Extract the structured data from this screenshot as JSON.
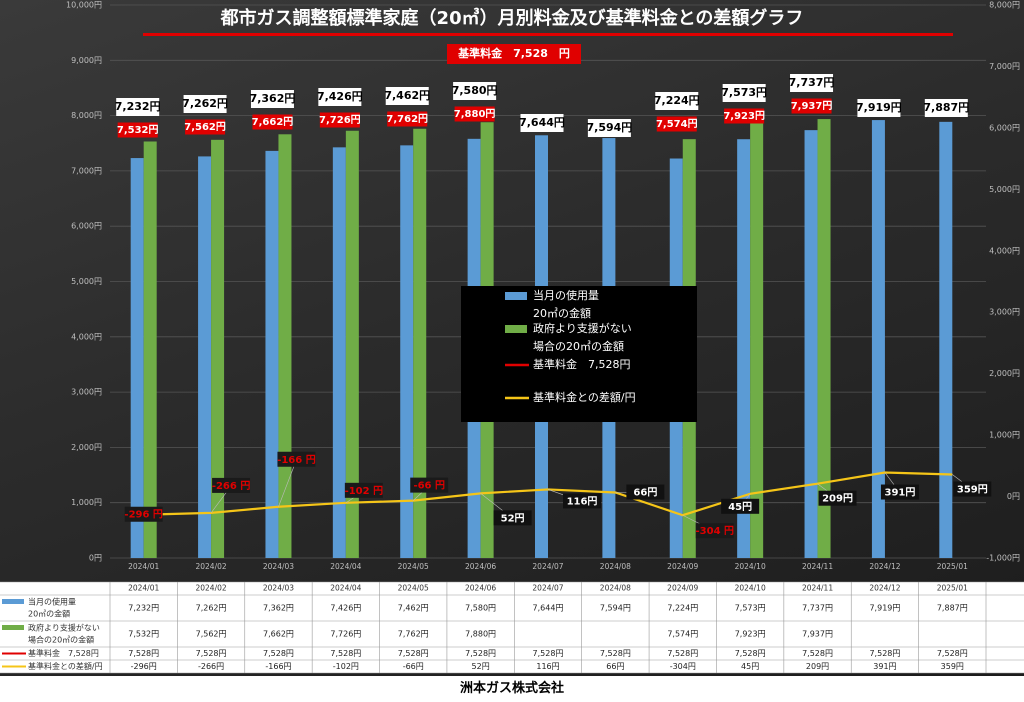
{
  "footer": {
    "company": "洲本ガス株式会社"
  },
  "colors": {
    "blue": "#5b9bd5",
    "green": "#70ad47",
    "red": "#e00000",
    "yellow": "#f5c518"
  },
  "chart_data": {
    "type": "bar",
    "title": "都市ガス調整額標準家庭（20㎥）月別料金及び基準料金との差額グラフ",
    "baseline_box": "基準料金　7,528　円",
    "categories": [
      "2024/01",
      "2024/02",
      "2024/03",
      "2024/04",
      "2024/05",
      "2024/06",
      "2024/07",
      "2024/08",
      "2024/09",
      "2024/10",
      "2024/11",
      "2024/12",
      "2025/01"
    ],
    "left_axis": {
      "ylim": [
        0,
        10000
      ],
      "ticks": [
        "0円",
        "1,000円",
        "2,000円",
        "3,000円",
        "4,000円",
        "5,000円",
        "6,000円",
        "7,000円",
        "8,000円",
        "9,000円",
        "10,000円"
      ]
    },
    "right_axis": {
      "ylim": [
        -1000,
        8000
      ],
      "ticks": [
        "-1,000円",
        "0円",
        "1,000円",
        "2,000円",
        "3,000円",
        "4,000円",
        "5,000円",
        "6,000円",
        "7,000円",
        "8,000円"
      ]
    },
    "series": [
      {
        "name": "当月の使用量20㎥の金額",
        "legend_lines": [
          "当月の使用量",
          "20㎥の金額"
        ],
        "table_lines": [
          "当月の使用量",
          "20㎥の金額"
        ],
        "chart": "bar",
        "axis": "left",
        "values": [
          7232,
          7262,
          7362,
          7426,
          7462,
          7580,
          7644,
          7594,
          7224,
          7573,
          7737,
          7919,
          7887
        ],
        "labels": [
          "7,232円",
          "7,262円",
          "7,362円",
          "7,426円",
          "7,462円",
          "7,580円",
          "7,644円",
          "7,594円",
          "7,224円",
          "7,573円",
          "7,737円",
          "7,919円",
          "7,887円"
        ]
      },
      {
        "name": "政府より支援がない場合の20㎥の金額",
        "legend_lines": [
          "政府より支援がない",
          "場合の20㎥の金額"
        ],
        "table_lines": [
          "政府より支援がない",
          "場合の20㎥の金額"
        ],
        "chart": "bar",
        "axis": "left",
        "values": [
          7532,
          7562,
          7662,
          7726,
          7762,
          7880,
          null,
          null,
          7574,
          7923,
          7937,
          null,
          null
        ],
        "labels": [
          "7,532円",
          "7,562円",
          "7,662円",
          "7,726円",
          "7,762円",
          "7,880円",
          "",
          "",
          "7,574円",
          "7,923円",
          "7,937円",
          "",
          ""
        ]
      },
      {
        "name": "基準料金　7,528円",
        "legend_lines": [
          "基準料金　7,528円"
        ],
        "table_lines": [
          "基準料金　7,528円"
        ],
        "chart": "line",
        "axis": "left",
        "values": [
          7528,
          7528,
          7528,
          7528,
          7528,
          7528,
          7528,
          7528,
          7528,
          7528,
          7528,
          7528,
          7528
        ],
        "labels": [
          "7,528円",
          "7,528円",
          "7,528円",
          "7,528円",
          "7,528円",
          "7,528円",
          "7,528円",
          "7,528円",
          "7,528円",
          "7,528円",
          "7,528円",
          "7,528円",
          "7,528円"
        ]
      },
      {
        "name": "基準料金との差額/円",
        "legend_lines": [
          "基準料金との差額/円"
        ],
        "table_lines": [
          "基準料金との差額/円"
        ],
        "chart": "line",
        "axis": "right",
        "values": [
          -296,
          -266,
          -166,
          -102,
          -66,
          52,
          116,
          66,
          -304,
          45,
          209,
          391,
          359
        ],
        "labels": [
          "-296 円",
          "-266 円",
          "-166 円",
          "-102 円",
          "-66 円",
          "52円",
          "116円",
          "66円",
          "-304 円",
          "45円",
          "209円",
          "391円",
          "359円"
        ],
        "table_labels": [
          "-296円",
          "-266円",
          "-166円",
          "-102円",
          "-66円",
          "52円",
          "116円",
          "66円",
          "-304円",
          "45円",
          "209円",
          "391円",
          "359円"
        ]
      }
    ],
    "legend_placement": "center",
    "grid": true
  }
}
